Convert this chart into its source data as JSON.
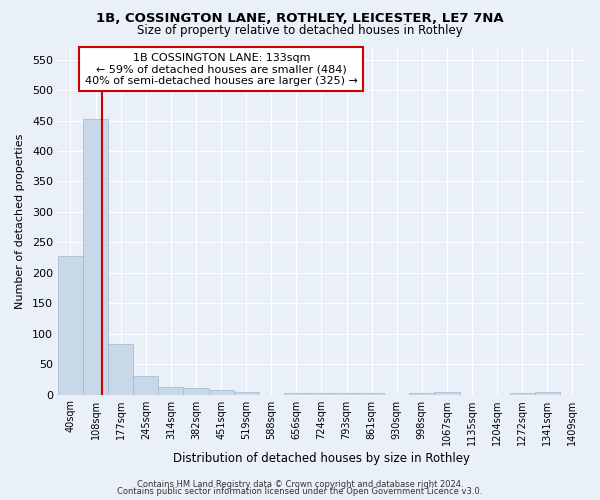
{
  "title1": "1B, COSSINGTON LANE, ROTHLEY, LEICESTER, LE7 7NA",
  "title2": "Size of property relative to detached houses in Rothley",
  "xlabel": "Distribution of detached houses by size in Rothley",
  "ylabel": "Number of detached properties",
  "bin_labels": [
    "40sqm",
    "108sqm",
    "177sqm",
    "245sqm",
    "314sqm",
    "382sqm",
    "451sqm",
    "519sqm",
    "588sqm",
    "656sqm",
    "724sqm",
    "793sqm",
    "861sqm",
    "930sqm",
    "998sqm",
    "1067sqm",
    "1135sqm",
    "1204sqm",
    "1272sqm",
    "1341sqm",
    "1409sqm"
  ],
  "bar_heights": [
    228,
    453,
    83,
    31,
    13,
    10,
    7,
    5,
    0,
    3,
    3,
    3,
    3,
    0,
    3,
    4,
    0,
    0,
    3,
    4,
    0
  ],
  "bar_color": "#c8d8e8",
  "bar_edge_color": "#a0b8cc",
  "property_line_x": 1.25,
  "annotation_line1": "1B COSSINGTON LANE: 133sqm",
  "annotation_line2": "← 59% of detached houses are smaller (484)",
  "annotation_line3": "40% of semi-detached houses are larger (325) →",
  "annotation_box_color": "#ffffff",
  "annotation_box_edge": "#cc0000",
  "red_line_color": "#cc0000",
  "ylim": [
    0,
    570
  ],
  "yticks": [
    0,
    50,
    100,
    150,
    200,
    250,
    300,
    350,
    400,
    450,
    500,
    550
  ],
  "footer1": "Contains HM Land Registry data © Crown copyright and database right 2024.",
  "footer2": "Contains public sector information licensed under the Open Government Licence v3.0.",
  "bg_color": "#eaf0f8",
  "plot_bg_color": "#eaf0f8"
}
